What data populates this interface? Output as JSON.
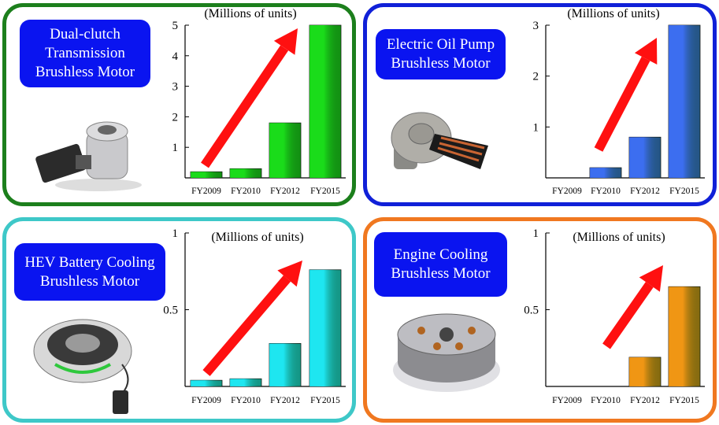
{
  "colors": {
    "green": "#1aa51a",
    "blue": "#0a14f0",
    "cyan": "#3cc8c8",
    "orange": "#f07814",
    "arrow": "#ff1010"
  },
  "panels": [
    {
      "title": "Dual-clutch\nTransmission\nBrushless Motor",
      "border_color": "#1c7f1c",
      "photo": "dual-clutch-motor-photo"
    },
    {
      "title": "Electric Oil Pump\nBrushless Motor",
      "border_color": "#1020d8",
      "photo": "oil-pump-motor-photo"
    },
    {
      "title": "HEV Battery Cooling\nBrushless Motor",
      "border_color": "#3ec8c8",
      "photo": "battery-cooling-motor-photo"
    },
    {
      "title": "Engine Cooling\nBrushless Motor",
      "border_color": "#f07820",
      "photo": "engine-cooling-motor-photo"
    }
  ],
  "chart_data": [
    {
      "type": "bar",
      "title": "(Millions of units)",
      "categories": [
        "FY2009",
        "FY2010",
        "FY2012",
        "FY2015"
      ],
      "series": [
        {
          "values": [
            0.2,
            0.3,
            1.8,
            5.0
          ]
        }
      ],
      "ylim": [
        0,
        5
      ],
      "yticks": [
        "1",
        "2",
        "3",
        "4",
        "5"
      ],
      "bar_color": "#1adc1a",
      "grid": false,
      "trend_arrow": true
    },
    {
      "type": "bar",
      "title": "(Millions of units)",
      "categories": [
        "FY2009",
        "FY2010",
        "FY2012",
        "FY2015"
      ],
      "series": [
        {
          "values": [
            0,
            0.2,
            0.8,
            3.0
          ]
        }
      ],
      "ylim": [
        0,
        3
      ],
      "yticks": [
        "1",
        "2",
        "3"
      ],
      "bar_color": "#3c6ef0",
      "grid": false,
      "trend_arrow": true
    },
    {
      "type": "bar",
      "title": "(Millions of units)",
      "categories": [
        "FY2009",
        "FY2010",
        "FY2012",
        "FY2015"
      ],
      "series": [
        {
          "values": [
            0.04,
            0.05,
            0.28,
            0.76
          ]
        }
      ],
      "ylim": [
        0,
        1
      ],
      "yticks": [
        "0.5",
        "1"
      ],
      "bar_color": "#1ee6f0",
      "grid": false,
      "trend_arrow": true
    },
    {
      "type": "bar",
      "title": "(Millions of units)",
      "categories": [
        "FY2009",
        "FY2010",
        "FY2012",
        "FY2015"
      ],
      "series": [
        {
          "values": [
            0,
            0,
            0.19,
            0.65
          ]
        }
      ],
      "ylim": [
        0,
        1
      ],
      "yticks": [
        "0.5",
        "1"
      ],
      "bar_color": "#f09614",
      "grid": false,
      "trend_arrow": true
    }
  ]
}
